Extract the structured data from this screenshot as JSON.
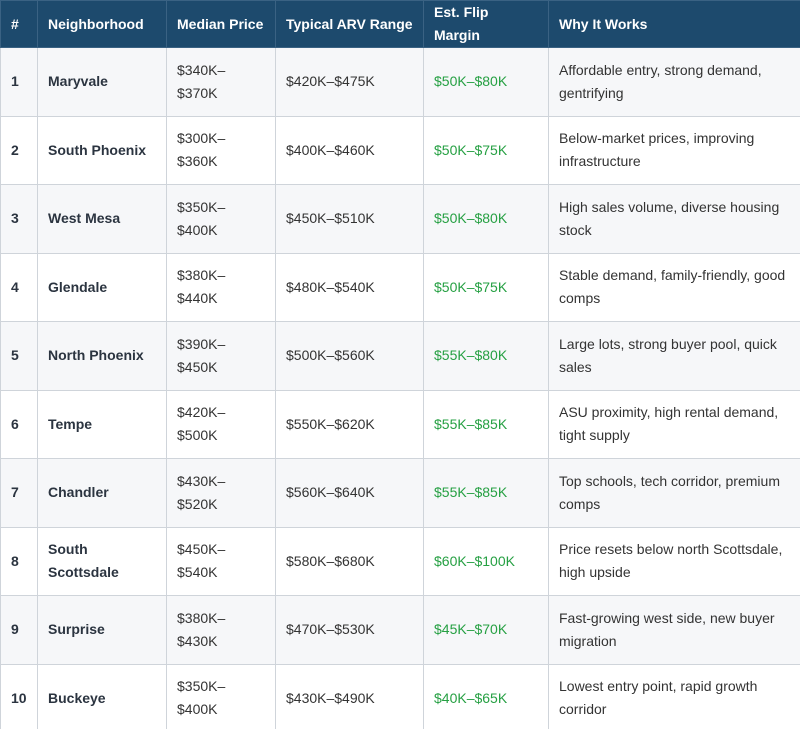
{
  "table": {
    "headers": [
      "#",
      "Neighborhood",
      "Median Price",
      "Typical ARV Range",
      "Est. Flip Margin",
      "Why It Works"
    ],
    "rows": [
      [
        "1",
        "Maryvale",
        "$340K–$370K",
        "$420K–$475K",
        "$50K–$80K",
        "Affordable entry, strong demand, gentrifying"
      ],
      [
        "2",
        "South Phoenix",
        "$300K–$360K",
        "$400K–$460K",
        "$50K–$75K",
        "Below-market prices, improving infrastructure"
      ],
      [
        "3",
        "West Mesa",
        "$350K–$400K",
        "$450K–$510K",
        "$50K–$80K",
        "High sales volume, diverse housing stock"
      ],
      [
        "4",
        "Glendale",
        "$380K–$440K",
        "$480K–$540K",
        "$50K–$75K",
        "Stable demand, family-friendly, good comps"
      ],
      [
        "5",
        "North Phoenix",
        "$390K–$450K",
        "$500K–$560K",
        "$55K–$80K",
        "Large lots, strong buyer pool, quick sales"
      ],
      [
        "6",
        "Tempe",
        "$420K–$500K",
        "$550K–$620K",
        "$55K–$85K",
        "ASU proximity, high rental demand, tight supply"
      ],
      [
        "7",
        "Chandler",
        "$430K–$520K",
        "$560K–$640K",
        "$55K–$85K",
        "Top schools, tech corridor, premium comps"
      ],
      [
        "8",
        "South Scottsdale",
        "$450K–$540K",
        "$580K–$680K",
        "$60K–$100K",
        "Price resets below north Scottsdale, high upside"
      ],
      [
        "9",
        "Surprise",
        "$380K–$430K",
        "$470K–$530K",
        "$45K–$70K",
        "Fast-growing west side, new buyer migration"
      ],
      [
        "10",
        "Buckeye",
        "$350K–$400K",
        "$430K–$490K",
        "$40K–$65K",
        "Lowest entry point, rapid growth corridor"
      ]
    ]
  }
}
